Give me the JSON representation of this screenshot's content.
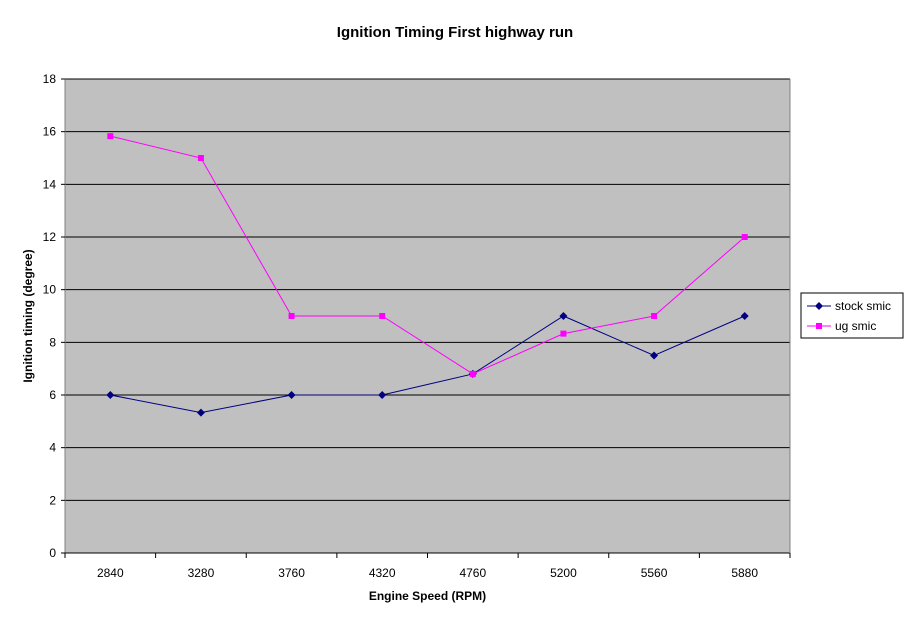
{
  "chart_data": {
    "type": "line",
    "title": "Ignition Timing First highway run",
    "xlabel": "Engine Speed (RPM)",
    "ylabel": "Ignition timing (degree)",
    "categories": [
      "2840",
      "3280",
      "3760",
      "4320",
      "4760",
      "5200",
      "5560",
      "5880"
    ],
    "ylim": [
      0,
      18
    ],
    "yticks": [
      0,
      2,
      4,
      6,
      8,
      10,
      12,
      14,
      16,
      18
    ],
    "grid": true,
    "legend": "right",
    "series": [
      {
        "name": "stock smic",
        "values": [
          6,
          5.33,
          6,
          6,
          6.8,
          9,
          7.5,
          9
        ],
        "color": "#000080",
        "marker": "diamond"
      },
      {
        "name": "ug smic",
        "values": [
          15.83,
          15,
          9,
          9,
          6.8,
          8.33,
          9,
          12
        ],
        "color": "#ff00ff",
        "marker": "square"
      }
    ],
    "colors": {
      "plot_background": "#c0c0c0",
      "gridline": "#000000"
    }
  }
}
